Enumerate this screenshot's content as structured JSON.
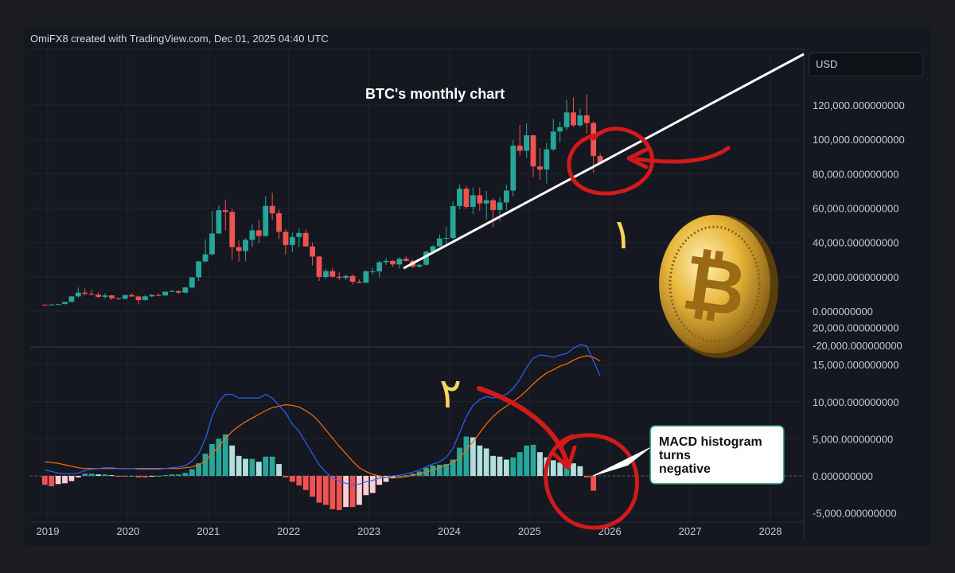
{
  "attribution": "OmiFX8 created with TradingView.com, Dec 01, 2025 04:40 UTC",
  "currency": "USD",
  "chart_data": [
    {
      "type": "candlestick",
      "title": "BTC's monthly chart",
      "ylim": [
        -20000,
        130000
      ],
      "y_ticks": [
        "120,000.000000000",
        "100,000.000000000",
        "80,000.000000000",
        "60,000.000000000",
        "40,000.000000000",
        "20,000.000000000",
        "0.000000000",
        "-20,000.000000000"
      ],
      "x_ticks": [
        "2019",
        "2020",
        "2021",
        "2022",
        "2023",
        "2024",
        "2025",
        "2026",
        "2027",
        "2028"
      ],
      "x_range": [
        "2019-01",
        "2028-12"
      ],
      "candles": [
        [
          "2019-01",
          3800,
          3850,
          3300,
          3450
        ],
        [
          "2019-02",
          3450,
          4200,
          3400,
          3850
        ],
        [
          "2019-03",
          3850,
          4150,
          3750,
          4100
        ],
        [
          "2019-04",
          4100,
          5600,
          4050,
          5350
        ],
        [
          "2019-05",
          5350,
          9000,
          5300,
          8600
        ],
        [
          "2019-06",
          8600,
          13800,
          7500,
          10800
        ],
        [
          "2019-07",
          10800,
          13200,
          9100,
          10100
        ],
        [
          "2019-08",
          10100,
          12300,
          9400,
          9600
        ],
        [
          "2019-09",
          9600,
          10900,
          7800,
          8300
        ],
        [
          "2019-10",
          8300,
          10400,
          7300,
          9200
        ],
        [
          "2019-11",
          9200,
          9500,
          6500,
          7550
        ],
        [
          "2019-12",
          7550,
          7700,
          6400,
          7200
        ],
        [
          "2020-01",
          7200,
          9600,
          6900,
          9350
        ],
        [
          "2020-02",
          9350,
          10500,
          8500,
          8550
        ],
        [
          "2020-03",
          8550,
          9200,
          3900,
          6450
        ],
        [
          "2020-04",
          6450,
          9500,
          6150,
          8650
        ],
        [
          "2020-05",
          8650,
          10100,
          8100,
          9450
        ],
        [
          "2020-06",
          9450,
          10400,
          8900,
          9150
        ],
        [
          "2020-07",
          9150,
          11450,
          9000,
          11350
        ],
        [
          "2020-08",
          11350,
          12500,
          11100,
          11700
        ],
        [
          "2020-09",
          11700,
          12100,
          9900,
          10800
        ],
        [
          "2020-10",
          10800,
          14100,
          10400,
          13800
        ],
        [
          "2020-11",
          13800,
          19900,
          13200,
          19700
        ],
        [
          "2020-12",
          19700,
          29300,
          17600,
          28990
        ],
        [
          "2021-01",
          28990,
          41900,
          28100,
          33100
        ],
        [
          "2021-02",
          33100,
          58400,
          32300,
          45200
        ],
        [
          "2021-03",
          45200,
          61800,
          45000,
          58800
        ],
        [
          "2021-04",
          58800,
          64900,
          47000,
          57750
        ],
        [
          "2021-05",
          57750,
          59600,
          30000,
          37300
        ],
        [
          "2021-06",
          37300,
          41300,
          28800,
          35000
        ],
        [
          "2021-07",
          35000,
          42400,
          29300,
          41500
        ],
        [
          "2021-08",
          41500,
          50500,
          37300,
          47100
        ],
        [
          "2021-09",
          47100,
          52900,
          39600,
          43800
        ],
        [
          "2021-10",
          43800,
          67000,
          43300,
          61300
        ],
        [
          "2021-11",
          61300,
          69000,
          53300,
          57000
        ],
        [
          "2021-12",
          57000,
          59100,
          42000,
          46200
        ],
        [
          "2022-01",
          46200,
          48000,
          33000,
          38500
        ],
        [
          "2022-02",
          38500,
          45800,
          34300,
          43200
        ],
        [
          "2022-03",
          43200,
          48200,
          37200,
          45500
        ],
        [
          "2022-04",
          45500,
          47400,
          37700,
          37700
        ],
        [
          "2022-05",
          37700,
          40000,
          26700,
          31800
        ],
        [
          "2022-06",
          31800,
          31900,
          17600,
          19900
        ],
        [
          "2022-07",
          19900,
          24700,
          18800,
          23300
        ],
        [
          "2022-08",
          23300,
          25200,
          19600,
          20050
        ],
        [
          "2022-09",
          20050,
          22800,
          18200,
          19400
        ],
        [
          "2022-10",
          19400,
          21100,
          18200,
          20500
        ],
        [
          "2022-11",
          20500,
          21500,
          15500,
          17150
        ],
        [
          "2022-12",
          17150,
          18400,
          16300,
          16550
        ],
        [
          "2023-01",
          16550,
          23900,
          16500,
          23150
        ],
        [
          "2023-02",
          23150,
          25300,
          21400,
          23150
        ],
        [
          "2023-03",
          23150,
          29200,
          19600,
          28500
        ],
        [
          "2023-04",
          28500,
          31000,
          26900,
          29250
        ],
        [
          "2023-05",
          29250,
          29800,
          25800,
          27200
        ],
        [
          "2023-06",
          27200,
          31400,
          24800,
          30500
        ],
        [
          "2023-07",
          30500,
          31800,
          28900,
          29250
        ],
        [
          "2023-08",
          29250,
          30200,
          25200,
          25950
        ],
        [
          "2023-09",
          25950,
          27500,
          24900,
          27000
        ],
        [
          "2023-10",
          27000,
          35200,
          26600,
          34650
        ],
        [
          "2023-11",
          34650,
          38400,
          34100,
          37750
        ],
        [
          "2023-12",
          37750,
          44700,
          37600,
          42300
        ],
        [
          "2024-01",
          42300,
          48900,
          38500,
          42600
        ],
        [
          "2024-02",
          42600,
          64000,
          41900,
          61200
        ],
        [
          "2024-03",
          61200,
          73800,
          59200,
          71300
        ],
        [
          "2024-04",
          71300,
          72800,
          59600,
          60700
        ],
        [
          "2024-05",
          60700,
          71900,
          56600,
          67500
        ],
        [
          "2024-06",
          67500,
          72000,
          58400,
          62700
        ],
        [
          "2024-07",
          62700,
          70000,
          53500,
          64600
        ],
        [
          "2024-08",
          64600,
          65600,
          49000,
          58900
        ],
        [
          "2024-09",
          58900,
          66500,
          52500,
          63300
        ],
        [
          "2024-10",
          63300,
          73600,
          58900,
          70200
        ],
        [
          "2024-11",
          70200,
          99800,
          66800,
          96400
        ],
        [
          "2024-12",
          96400,
          108300,
          90500,
          93400
        ],
        [
          "2025-01",
          93400,
          109300,
          89200,
          102400
        ],
        [
          "2025-02",
          102400,
          102700,
          78200,
          84300
        ],
        [
          "2025-03",
          84300,
          95000,
          76600,
          82500
        ],
        [
          "2025-04",
          82500,
          97900,
          74400,
          94200
        ],
        [
          "2025-05",
          94200,
          111900,
          93400,
          104600
        ],
        [
          "2025-06",
          104600,
          110400,
          98200,
          107100
        ],
        [
          "2025-07",
          107100,
          123200,
          105100,
          115700
        ],
        [
          "2025-08",
          115700,
          124500,
          107300,
          108200
        ],
        [
          "2025-09",
          108200,
          117900,
          107300,
          114000
        ],
        [
          "2025-10",
          114000,
          126200,
          103500,
          109500
        ],
        [
          "2025-11",
          109500,
          110600,
          80600,
          90300
        ],
        [
          "2025-12",
          90300,
          91900,
          85600,
          86500
        ]
      ],
      "trendline": {
        "start": [
          "2023-09",
          25000
        ],
        "end": [
          "2028-12",
          148000
        ]
      }
    },
    {
      "type": "macd",
      "ylim": [
        -6500,
        19000
      ],
      "y_ticks": [
        "20,000.000000000",
        "15,000.000000000",
        "10,000.000000000",
        "5,000.000000000",
        "0.000000000",
        "-5,000.000000000"
      ],
      "histogram": [
        -1200,
        -1400,
        -1100,
        -1000,
        -700,
        -200,
        300,
        300,
        200,
        200,
        100,
        -100,
        -100,
        0,
        -200,
        -200,
        -100,
        0,
        100,
        200,
        200,
        400,
        900,
        1700,
        3000,
        4300,
        5000,
        5600,
        4100,
        2700,
        2300,
        2300,
        1900,
        2600,
        2600,
        1600,
        -200,
        -800,
        -1300,
        -1900,
        -2800,
        -3600,
        -3900,
        -4500,
        -4600,
        -4200,
        -4200,
        -3900,
        -2600,
        -2300,
        -1200,
        -800,
        -300,
        0,
        100,
        300,
        600,
        1100,
        1400,
        1500,
        1600,
        2200,
        3800,
        5300,
        5200,
        4100,
        3700,
        2700,
        2600,
        2200,
        2500,
        3200,
        4100,
        4200,
        3200,
        2500,
        2100,
        1800,
        2000,
        1700,
        1300,
        -200,
        -2000
      ],
      "macd_line": [
        800,
        600,
        400,
        300,
        300,
        400,
        700,
        900,
        1000,
        1100,
        1100,
        1000,
        1000,
        1000,
        900,
        900,
        900,
        900,
        1000,
        1100,
        1200,
        1400,
        2000,
        3000,
        5000,
        8000,
        10000,
        11000,
        11000,
        10500,
        10500,
        10500,
        10500,
        11000,
        10500,
        9500,
        8500,
        7000,
        6000,
        4500,
        3000,
        1500,
        500,
        -300,
        -700,
        -1000,
        -1200,
        -1100,
        -800,
        -600,
        -300,
        -200,
        0,
        100,
        300,
        500,
        800,
        1200,
        1600,
        1900,
        2500,
        3700,
        5800,
        8000,
        9500,
        10300,
        10700,
        10500,
        10700,
        11000,
        11800,
        13000,
        14600,
        15900,
        16300,
        16200,
        16000,
        16300,
        16500,
        17200,
        17700,
        17500,
        15500,
        13500
      ],
      "signal_line": [
        1900,
        1800,
        1700,
        1500,
        1300,
        1100,
        1000,
        1000,
        1000,
        1000,
        1000,
        1000,
        1000,
        1000,
        1000,
        1000,
        1000,
        1000,
        1000,
        1000,
        1000,
        1100,
        1200,
        1500,
        2000,
        3000,
        4000,
        5000,
        6000,
        6700,
        7300,
        7800,
        8300,
        8800,
        9200,
        9400,
        9600,
        9500,
        9300,
        8800,
        8200,
        7300,
        6200,
        5100,
        4000,
        3000,
        2000,
        1100,
        600,
        200,
        0,
        -200,
        -300,
        -200,
        -100,
        100,
        300,
        500,
        800,
        1100,
        1400,
        1800,
        2400,
        3500,
        4600,
        5800,
        7000,
        8000,
        8800,
        9400,
        10000,
        10700,
        11500,
        12400,
        13200,
        13900,
        14300,
        14800,
        15100,
        15600,
        16000,
        16200,
        16000,
        15500
      ]
    }
  ],
  "annotations": {
    "arrow_one_label": "۱",
    "arrow_two_label": "۲",
    "macd_callout": [
      "MACD histogram",
      "turns",
      "negative"
    ]
  },
  "colors": {
    "up": "#26a69a",
    "down": "#ef5350",
    "up_light": "#b2dfdb",
    "down_light": "#ffcdd2",
    "macd": "#2962ff",
    "signal": "#ff6d00",
    "marker": "#d11a1a",
    "label_yellow": "#f5d55b"
  }
}
